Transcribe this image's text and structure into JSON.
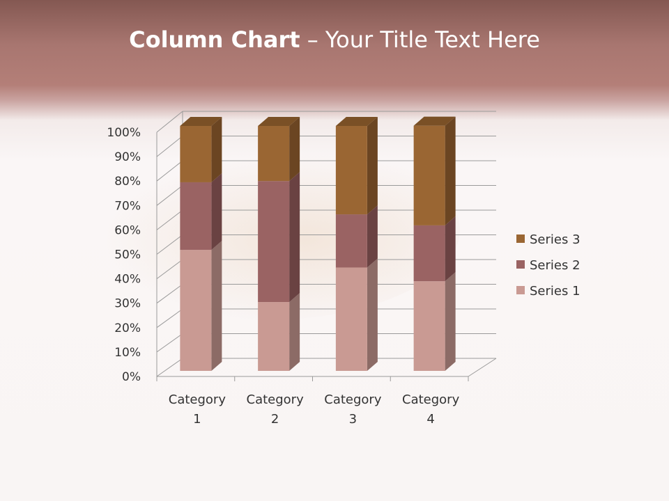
{
  "slide": {
    "title_bold": "Column Chart",
    "title_rest": " – Your Title Text Here"
  },
  "chart_data": {
    "type": "bar",
    "stacked": "percent",
    "three_d": true,
    "categories": [
      "Category 1",
      "Category 2",
      "Category 3",
      "Category 4"
    ],
    "category_lines": [
      [
        "Category",
        "1"
      ],
      [
        "Category",
        "2"
      ],
      [
        "Category",
        "3"
      ],
      [
        "Category",
        "4"
      ]
    ],
    "series": [
      {
        "name": "Series 1",
        "values": [
          49.4,
          28.1,
          42.2,
          36.6
        ],
        "color": "#c99a93",
        "side": "#8c6b66"
      },
      {
        "name": "Series 2",
        "values": [
          27.6,
          49.4,
          21.7,
          22.8
        ],
        "color": "#9a6363",
        "side": "#6a4242"
      },
      {
        "name": "Series 3",
        "values": [
          23.0,
          22.5,
          36.1,
          40.7
        ],
        "color": "#9a6633",
        "side": "#6b4522"
      }
    ],
    "yticks": [
      "0%",
      "10%",
      "20%",
      "30%",
      "40%",
      "50%",
      "60%",
      "70%",
      "80%",
      "90%",
      "100%"
    ],
    "ylim": [
      0,
      100
    ],
    "grid": true,
    "legend": {
      "position": "right",
      "order": [
        "Series 3",
        "Series 2",
        "Series 1"
      ]
    }
  }
}
